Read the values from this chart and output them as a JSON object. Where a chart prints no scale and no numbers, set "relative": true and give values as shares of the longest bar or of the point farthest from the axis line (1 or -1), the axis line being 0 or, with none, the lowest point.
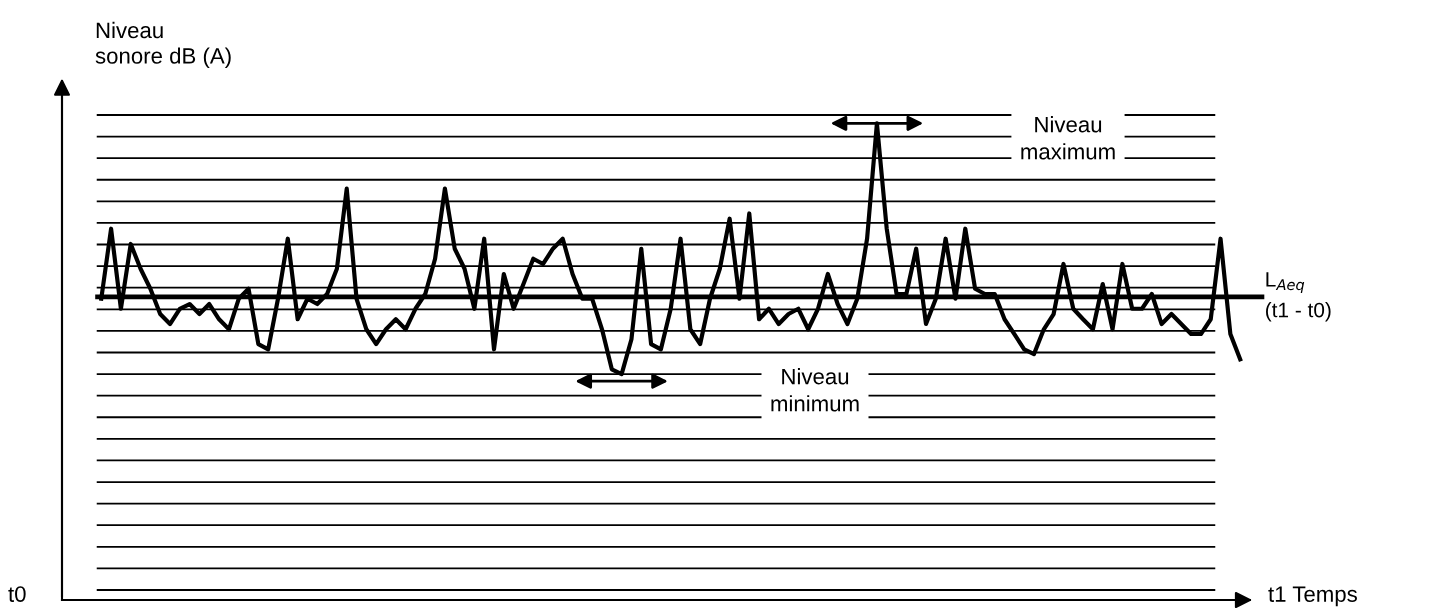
{
  "chart_data": {
    "type": "line",
    "relative": true,
    "ylabel": "Niveau\nsonore dB (A)",
    "categories": [
      null,
      null,
      null,
      null,
      null,
      null,
      null,
      null,
      null,
      null,
      null,
      null,
      null,
      null,
      null,
      null,
      null,
      null,
      null,
      null,
      null,
      null,
      null,
      null,
      null,
      null,
      null,
      null,
      null,
      null,
      null,
      null,
      null,
      null,
      null,
      null,
      null,
      null,
      null,
      null,
      null,
      null,
      null,
      null,
      null,
      null,
      null,
      null,
      null,
      null,
      null,
      null,
      null,
      null,
      null,
      null,
      null,
      null,
      null,
      null,
      null,
      null,
      null,
      null,
      null,
      null,
      null,
      null,
      null,
      null,
      null,
      null,
      null,
      null,
      null,
      null,
      null,
      null,
      null,
      null,
      null,
      null,
      null,
      null,
      null,
      null,
      null,
      null,
      null,
      null,
      null,
      null,
      null,
      null,
      null,
      null,
      null,
      null,
      null,
      null,
      null,
      null,
      null,
      null,
      null,
      null,
      null,
      null,
      null,
      null,
      null,
      null,
      null,
      null,
      null,
      null,
      null
    ],
    "series": [
      {
        "color": "#000000",
        "values": [
          0.632,
          0.779,
          0.611,
          0.747,
          0.695,
          0.653,
          0.6,
          0.579,
          0.611,
          0.621,
          0.6,
          0.621,
          0.589,
          0.568,
          0.632,
          0.653,
          0.537,
          0.526,
          0.632,
          0.758,
          0.589,
          0.632,
          0.621,
          0.642,
          0.695,
          0.863,
          0.632,
          0.568,
          0.537,
          0.568,
          0.589,
          0.568,
          0.611,
          0.642,
          0.716,
          0.863,
          0.737,
          0.695,
          0.611,
          0.758,
          0.526,
          0.684,
          0.611,
          0.663,
          0.716,
          0.705,
          0.737,
          0.758,
          0.684,
          0.632,
          0.632,
          0.568,
          0.484,
          0.474,
          0.547,
          0.737,
          0.537,
          0.526,
          0.611,
          0.758,
          0.568,
          0.537,
          0.632,
          0.695,
          0.8,
          0.632,
          0.811,
          0.589,
          0.611,
          0.579,
          0.6,
          0.611,
          0.568,
          0.611,
          0.684,
          0.621,
          0.579,
          0.632,
          0.758,
          1,
          0.779,
          0.642,
          0.642,
          0.737,
          0.579,
          0.632,
          0.758,
          0.632,
          0.779,
          0.653,
          0.642,
          0.642,
          0.589,
          0.558,
          0.526,
          0.516,
          0.568,
          0.6,
          0.705,
          0.611,
          0.589,
          0.568,
          0.663,
          0.568,
          0.705,
          0.611,
          0.611,
          0.642,
          0.579,
          0.6,
          0.579,
          0.558,
          0.558,
          0.589,
          0.758,
          0.558,
          0.505
        ]
      }
    ],
    "ref_lines": [
      {
        "axis": "y",
        "value": 0.636,
        "label": "L$_{Aeq}$\n(t1 - t0)",
        "color": "#000000"
      }
    ],
    "annotations": [
      "Niveau\nmaximum",
      "Niveau\nminimum",
      "t0",
      "t1 Temps"
    ],
    "grid": true,
    "marker": "none",
    "line_style": "solid",
    "legend": false
  }
}
